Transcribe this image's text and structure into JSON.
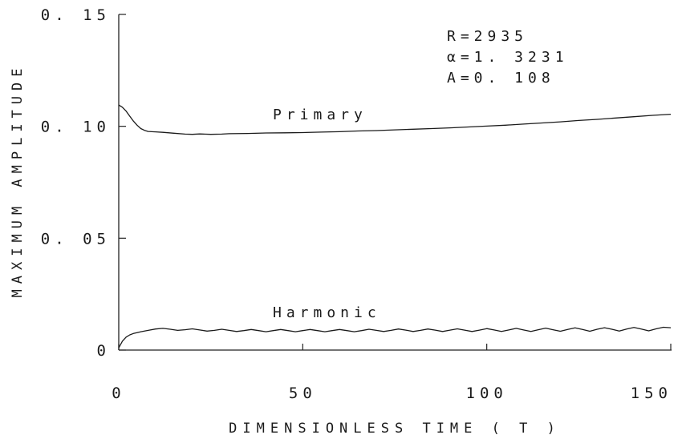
{
  "chart_data": {
    "type": "line",
    "title": "",
    "xlabel": "DIMENSIONLESS TIME ( T )",
    "ylabel": "MAXIMUM AMPLITUDE",
    "xlim": [
      0,
      150
    ],
    "ylim": [
      0,
      0.15
    ],
    "x_ticks": [
      0,
      50,
      100,
      150
    ],
    "x_tick_labels": [
      "0",
      "50",
      "100",
      "150"
    ],
    "y_ticks": [
      0,
      0.05,
      0.1,
      0.15
    ],
    "y_tick_labels": [
      "0",
      "0. 05",
      "0. 10",
      "0. 15"
    ],
    "grid": false,
    "legend": "none",
    "annotations": [
      "R=2935",
      "α=1. 3231",
      "A=0. 108"
    ],
    "series": [
      {
        "name": "Primary",
        "x": [
          0,
          1,
          2,
          3,
          4,
          5,
          6,
          7,
          8,
          10,
          12,
          15,
          18,
          20,
          22,
          25,
          28,
          30,
          35,
          40,
          45,
          50,
          55,
          60,
          65,
          70,
          75,
          80,
          85,
          90,
          95,
          100,
          105,
          110,
          115,
          120,
          125,
          130,
          135,
          140,
          145,
          150
        ],
        "y": [
          0.1095,
          0.1085,
          0.1068,
          0.1045,
          0.1023,
          0.1005,
          0.099,
          0.0982,
          0.0977,
          0.0975,
          0.0973,
          0.0969,
          0.0965,
          0.0964,
          0.0966,
          0.0964,
          0.0965,
          0.0967,
          0.0968,
          0.097,
          0.0971,
          0.0972,
          0.0974,
          0.0976,
          0.0979,
          0.0981,
          0.0984,
          0.0987,
          0.099,
          0.0993,
          0.0997,
          0.1001,
          0.1005,
          0.101,
          0.1015,
          0.102,
          0.1026,
          0.1031,
          0.1037,
          0.1043,
          0.1049,
          0.1054
        ]
      },
      {
        "name": "Harmonic",
        "x": [
          0,
          1,
          2,
          3,
          4,
          5,
          6,
          8,
          10,
          12,
          14,
          16,
          18,
          20,
          22,
          24,
          26,
          28,
          30,
          32,
          34,
          36,
          38,
          40,
          42,
          44,
          46,
          48,
          50,
          52,
          54,
          56,
          58,
          60,
          62,
          64,
          66,
          68,
          70,
          72,
          74,
          76,
          78,
          80,
          82,
          84,
          86,
          88,
          90,
          92,
          94,
          96,
          98,
          100,
          102,
          104,
          106,
          108,
          110,
          112,
          114,
          116,
          118,
          120,
          122,
          124,
          126,
          128,
          130,
          132,
          134,
          136,
          138,
          140,
          142,
          144,
          146,
          148,
          150
        ],
        "y": [
          0.001,
          0.004,
          0.0058,
          0.0068,
          0.0074,
          0.0078,
          0.0082,
          0.0088,
          0.0094,
          0.0097,
          0.0093,
          0.0088,
          0.0091,
          0.0095,
          0.009,
          0.0085,
          0.0088,
          0.0093,
          0.0088,
          0.0083,
          0.0087,
          0.0092,
          0.0087,
          0.0082,
          0.0087,
          0.0092,
          0.0087,
          0.0082,
          0.0087,
          0.0092,
          0.0087,
          0.0082,
          0.0087,
          0.0092,
          0.0087,
          0.0082,
          0.0087,
          0.0093,
          0.0088,
          0.0083,
          0.0088,
          0.0094,
          0.0089,
          0.0083,
          0.0088,
          0.0094,
          0.0089,
          0.0083,
          0.0089,
          0.0095,
          0.0089,
          0.0083,
          0.0089,
          0.0096,
          0.009,
          0.0083,
          0.009,
          0.0097,
          0.009,
          0.0083,
          0.0091,
          0.0098,
          0.0091,
          0.0084,
          0.0092,
          0.0099,
          0.0092,
          0.0084,
          0.0093,
          0.01,
          0.0093,
          0.0085,
          0.0094,
          0.0101,
          0.0094,
          0.0086,
          0.0095,
          0.0102,
          0.01
        ]
      }
    ]
  }
}
